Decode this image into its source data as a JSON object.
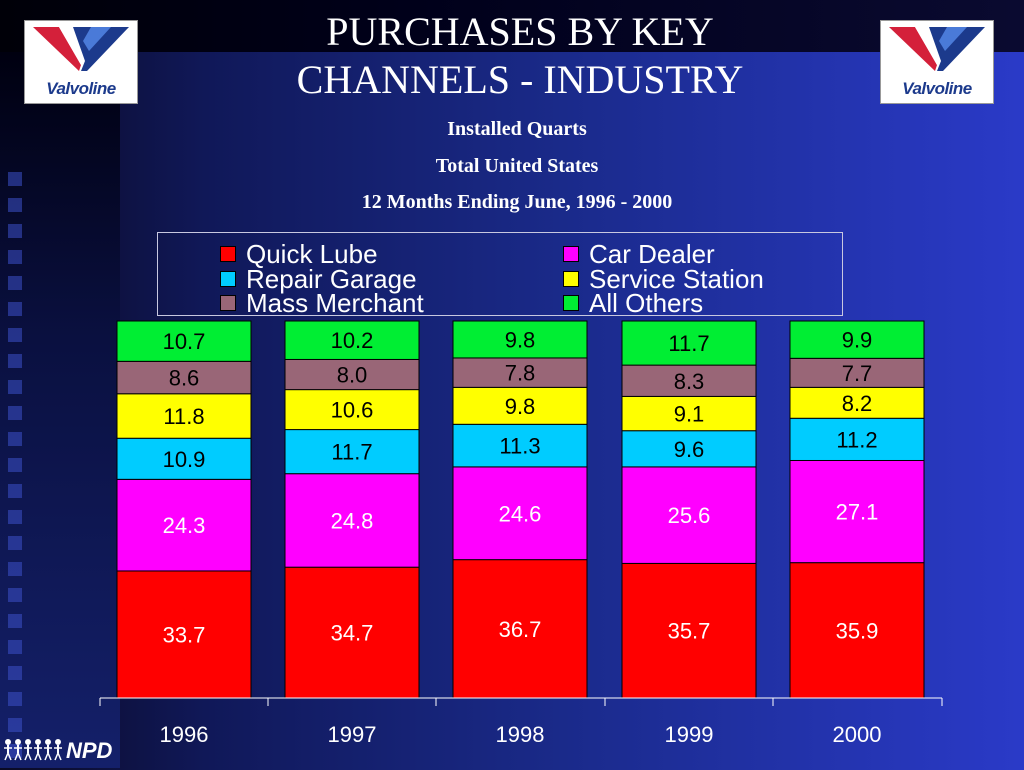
{
  "title_line1": "PURCHASES BY KEY",
  "title_line2": "CHANNELS - INDUSTRY",
  "subtitle1": "Installed Quarts",
  "subtitle2": "Total United States",
  "subtitle3": "12 Months Ending June, 1996 - 2000",
  "logos": {
    "left_text": "Valvoline",
    "right_text": "Valvoline",
    "footer_text": "NPD"
  },
  "colors": {
    "quick_lube": "#ff0000",
    "car_dealer": "#ff00ff",
    "repair_garage": "#00ccff",
    "service_station": "#ffff00",
    "mass_merchant": "#996677",
    "all_others": "#00ee33"
  },
  "chart_data": {
    "type": "bar",
    "stacked": true,
    "categories": [
      "1996",
      "1997",
      "1998",
      "1999",
      "2000"
    ],
    "series": [
      {
        "name": "Quick Lube",
        "color": "#ff0000",
        "values": [
          33.7,
          34.7,
          36.7,
          35.7,
          35.9
        ],
        "labels": [
          "33.7",
          "34.7",
          "36.7",
          "35.7",
          "35.9"
        ]
      },
      {
        "name": "Car Dealer",
        "color": "#ff00ff",
        "values": [
          24.3,
          24.8,
          24.6,
          25.6,
          27.1
        ],
        "labels": [
          "24.3",
          "24.8",
          "24.6",
          "25.6",
          "27.1"
        ]
      },
      {
        "name": "Repair Garage",
        "color": "#00ccff",
        "values": [
          10.9,
          11.7,
          11.3,
          9.6,
          11.2
        ],
        "labels": [
          "10.9",
          "11.7",
          "11.3",
          "9.6",
          "11.2"
        ]
      },
      {
        "name": "Service Station",
        "color": "#ffff00",
        "values": [
          11.8,
          10.6,
          9.8,
          9.1,
          8.2
        ],
        "labels": [
          "11.8",
          "10.6",
          "9.8",
          "9.1",
          "8.2"
        ]
      },
      {
        "name": "Mass Merchant",
        "color": "#996677",
        "values": [
          8.6,
          8.0,
          7.8,
          8.3,
          7.7
        ],
        "labels": [
          "8.6",
          "8.0",
          "7.8",
          "8.3",
          "7.7"
        ]
      },
      {
        "name": "All Others",
        "color": "#00ee33",
        "values": [
          10.7,
          10.2,
          9.8,
          11.7,
          9.9
        ],
        "labels": [
          "10.7",
          "10.2",
          "9.8",
          "11.7",
          "9.9"
        ]
      }
    ],
    "ylim": [
      0,
      100
    ],
    "legend": {
      "position": "top",
      "order": [
        "Quick Lube",
        "Car Dealer",
        "Repair Garage",
        "Service Station",
        "Mass Merchant",
        "All Others"
      ]
    },
    "grid": false
  }
}
